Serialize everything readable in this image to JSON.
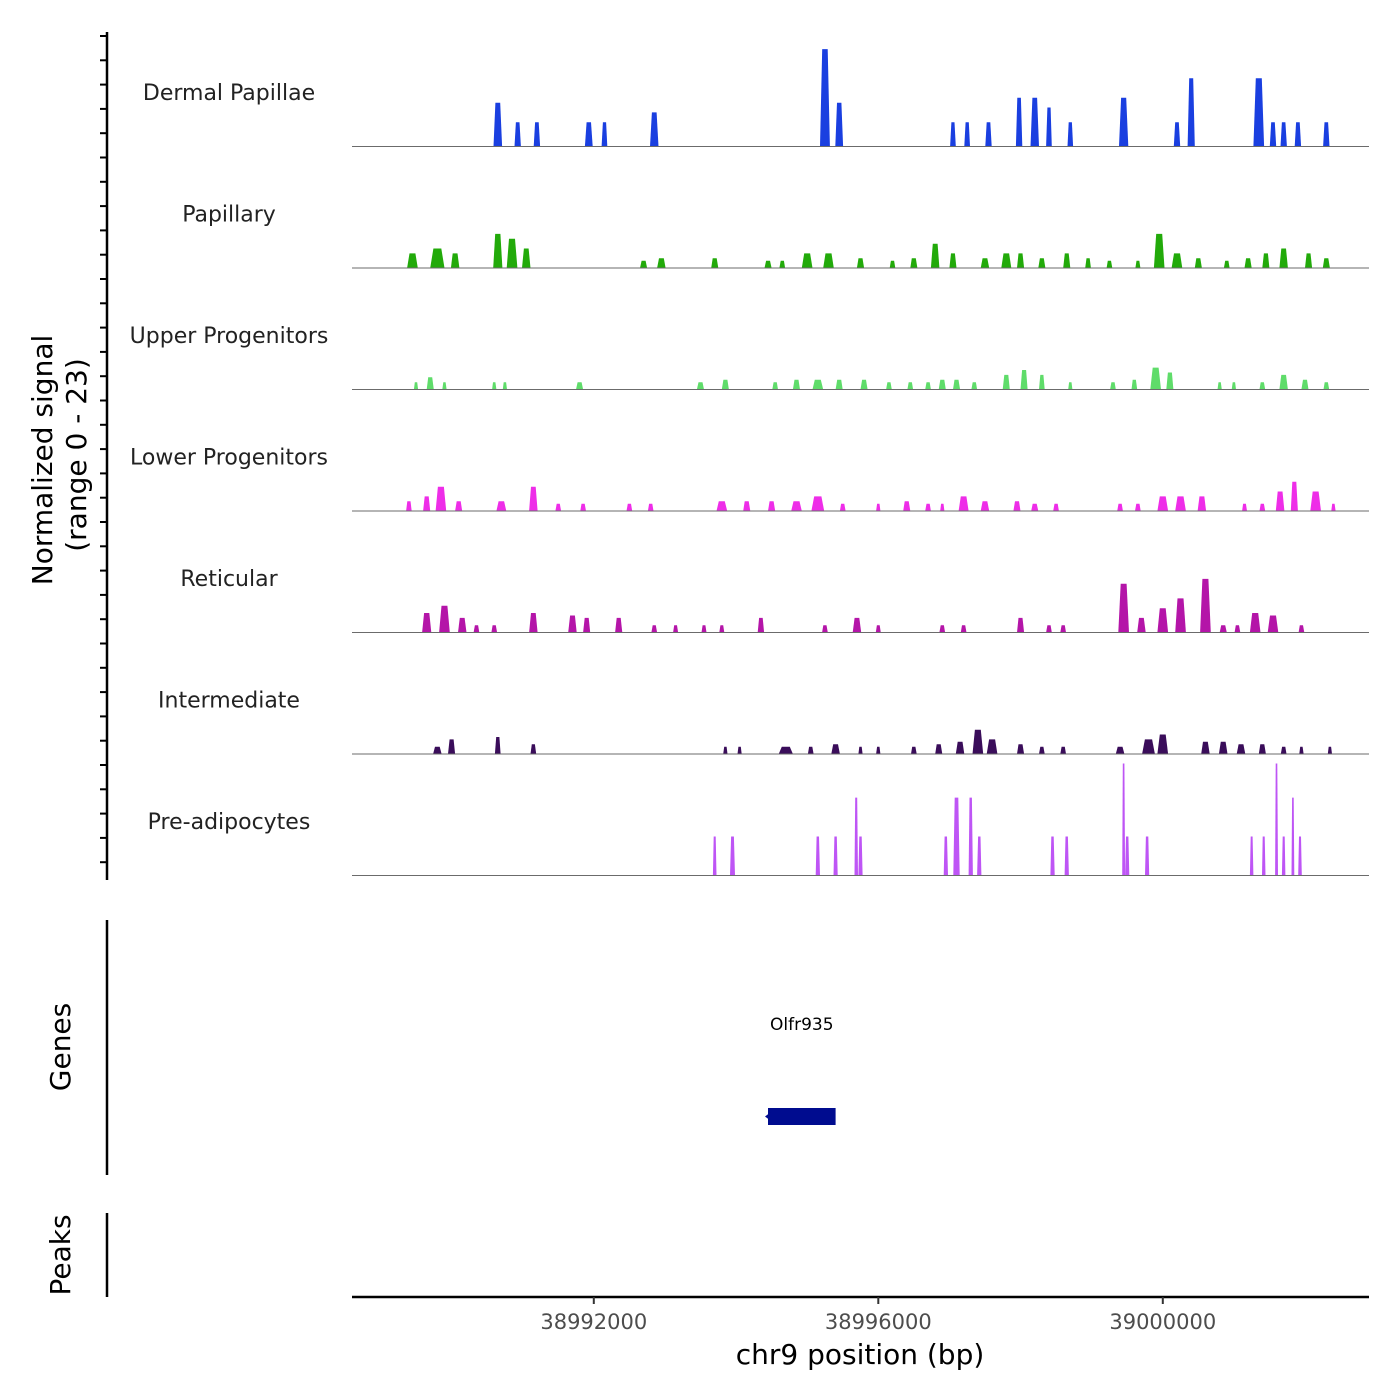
{
  "chart_data": {
    "type": "area",
    "title": "",
    "ylabel": "Normalized signal",
    "ylabel_range": "(range 0 - 23)",
    "ylim": [
      0,
      23
    ],
    "xlabel": "chr9 position (bp)",
    "xlim": [
      38988600,
      39002900
    ],
    "x_ticks": [
      38992000,
      38996000,
      39000000
    ],
    "x_tick_labels": [
      "38992000",
      "38996000",
      "39000000"
    ],
    "series": [
      {
        "name": "Dermal Papillae",
        "color": "#1a3fe0",
        "peaks": [
          [
            38990650,
            120,
            9
          ],
          [
            38990930,
            90,
            5
          ],
          [
            38991200,
            90,
            5
          ],
          [
            38991930,
            110,
            5
          ],
          [
            38992150,
            80,
            5
          ],
          [
            38992850,
            120,
            7
          ],
          [
            38995250,
            140,
            20
          ],
          [
            38995450,
            110,
            9
          ],
          [
            38997050,
            80,
            5
          ],
          [
            38997250,
            80,
            5
          ],
          [
            38997550,
            90,
            5
          ],
          [
            38997980,
            90,
            10
          ],
          [
            38998200,
            120,
            10
          ],
          [
            38998400,
            80,
            8
          ],
          [
            38998700,
            80,
            5
          ],
          [
            38999450,
            130,
            10
          ],
          [
            39000200,
            90,
            5
          ],
          [
            39000400,
            100,
            14
          ],
          [
            39001350,
            150,
            14
          ],
          [
            39001550,
            90,
            5
          ],
          [
            39001700,
            90,
            5
          ],
          [
            39001900,
            90,
            5
          ],
          [
            39002300,
            90,
            5
          ]
        ]
      },
      {
        "name": "Papillary",
        "color": "#22aa0a",
        "peaks": [
          [
            38989450,
            150,
            3
          ],
          [
            38989800,
            200,
            4
          ],
          [
            38990050,
            120,
            3
          ],
          [
            38990650,
            130,
            7
          ],
          [
            38990850,
            150,
            6
          ],
          [
            38991050,
            120,
            4
          ],
          [
            38992700,
            100,
            1.5
          ],
          [
            38992950,
            120,
            2
          ],
          [
            38993700,
            100,
            2
          ],
          [
            38994450,
            100,
            1.5
          ],
          [
            38994650,
            80,
            1.5
          ],
          [
            38995000,
            150,
            3
          ],
          [
            38995300,
            150,
            3
          ],
          [
            38995750,
            100,
            2
          ],
          [
            38996200,
            80,
            1.5
          ],
          [
            38996500,
            100,
            2
          ],
          [
            38996800,
            120,
            5
          ],
          [
            38997050,
            100,
            3
          ],
          [
            38997500,
            120,
            2
          ],
          [
            38997800,
            140,
            3
          ],
          [
            38998000,
            100,
            3
          ],
          [
            38998300,
            100,
            2
          ],
          [
            38998650,
            100,
            3
          ],
          [
            38998950,
            80,
            2
          ],
          [
            38999250,
            80,
            1.5
          ],
          [
            38999650,
            70,
            1.5
          ],
          [
            38999950,
            150,
            7
          ],
          [
            39000200,
            150,
            3
          ],
          [
            39000500,
            100,
            2
          ],
          [
            39000900,
            80,
            1.5
          ],
          [
            39001200,
            100,
            2
          ],
          [
            39001450,
            100,
            3
          ],
          [
            39001700,
            120,
            4
          ],
          [
            39002050,
            100,
            3
          ],
          [
            39002300,
            100,
            2
          ]
        ]
      },
      {
        "name": "Upper Progenitors",
        "color": "#5fdc6a",
        "peaks": [
          [
            38989500,
            60,
            1.5
          ],
          [
            38989700,
            100,
            2.5
          ],
          [
            38989900,
            60,
            1.5
          ],
          [
            38990600,
            60,
            1.5
          ],
          [
            38990750,
            60,
            1.5
          ],
          [
            38991800,
            100,
            1.5
          ],
          [
            38993500,
            100,
            1.5
          ],
          [
            38993850,
            100,
            2
          ],
          [
            38994550,
            80,
            1.5
          ],
          [
            38994850,
            100,
            2
          ],
          [
            38995150,
            150,
            2
          ],
          [
            38995450,
            100,
            2
          ],
          [
            38995800,
            100,
            2
          ],
          [
            38996150,
            80,
            1.5
          ],
          [
            38996450,
            80,
            1.5
          ],
          [
            38996700,
            80,
            1.5
          ],
          [
            38996900,
            100,
            2
          ],
          [
            38997100,
            100,
            2
          ],
          [
            38997350,
            80,
            1.5
          ],
          [
            38997800,
            100,
            3
          ],
          [
            38998050,
            100,
            4
          ],
          [
            38998300,
            80,
            3
          ],
          [
            38998700,
            60,
            1.5
          ],
          [
            38999300,
            80,
            1.5
          ],
          [
            38999600,
            80,
            2
          ],
          [
            38999900,
            150,
            4.5
          ],
          [
            39000100,
            100,
            3.5
          ],
          [
            39000800,
            60,
            1.5
          ],
          [
            39001000,
            60,
            1.5
          ],
          [
            39001400,
            80,
            1.5
          ],
          [
            39001700,
            120,
            3
          ],
          [
            39002000,
            100,
            2
          ],
          [
            39002300,
            80,
            1.5
          ]
        ]
      },
      {
        "name": "Lower Progenitors",
        "color": "#ee2de8",
        "peaks": [
          [
            38989400,
            80,
            2
          ],
          [
            38989650,
            100,
            3
          ],
          [
            38989850,
            150,
            5
          ],
          [
            38990100,
            100,
            2
          ],
          [
            38990700,
            140,
            2
          ],
          [
            38991150,
            120,
            5
          ],
          [
            38991500,
            80,
            1.5
          ],
          [
            38991850,
            80,
            1.5
          ],
          [
            38992500,
            80,
            1.5
          ],
          [
            38992800,
            80,
            1.5
          ],
          [
            38993800,
            150,
            2
          ],
          [
            38994150,
            100,
            2
          ],
          [
            38994500,
            100,
            2
          ],
          [
            38994850,
            150,
            2
          ],
          [
            38995150,
            180,
            3
          ],
          [
            38995500,
            80,
            1.5
          ],
          [
            38996000,
            60,
            1.5
          ],
          [
            38996400,
            100,
            2
          ],
          [
            38996700,
            80,
            1.5
          ],
          [
            38996900,
            60,
            1.5
          ],
          [
            38997200,
            140,
            3
          ],
          [
            38997500,
            120,
            2
          ],
          [
            38997950,
            100,
            2
          ],
          [
            38998200,
            100,
            1.5
          ],
          [
            38998500,
            80,
            1.5
          ],
          [
            38999400,
            80,
            1.5
          ],
          [
            38999650,
            80,
            1.5
          ],
          [
            39000000,
            150,
            3
          ],
          [
            39000250,
            150,
            3
          ],
          [
            39000550,
            120,
            3
          ],
          [
            39001150,
            70,
            1.5
          ],
          [
            39001400,
            80,
            1.5
          ],
          [
            39001650,
            120,
            4
          ],
          [
            39001850,
            100,
            6
          ],
          [
            39002150,
            150,
            4
          ],
          [
            39002400,
            60,
            1.5
          ]
        ]
      },
      {
        "name": "Reticular",
        "color": "#b415a8",
        "peaks": [
          [
            38989650,
            130,
            4
          ],
          [
            38989900,
            150,
            5.5
          ],
          [
            38990150,
            120,
            3
          ],
          [
            38990350,
            80,
            1.5
          ],
          [
            38990600,
            80,
            1.5
          ],
          [
            38991150,
            120,
            4
          ],
          [
            38991700,
            120,
            3.5
          ],
          [
            38991900,
            100,
            3
          ],
          [
            38992350,
            100,
            3
          ],
          [
            38992850,
            80,
            1.5
          ],
          [
            38993150,
            70,
            1.5
          ],
          [
            38993550,
            70,
            1.5
          ],
          [
            38993800,
            70,
            1.5
          ],
          [
            38994350,
            90,
            3
          ],
          [
            38995250,
            80,
            1.5
          ],
          [
            38995700,
            120,
            3
          ],
          [
            38996000,
            70,
            1.5
          ],
          [
            38996900,
            80,
            1.5
          ],
          [
            38997200,
            80,
            1.5
          ],
          [
            38998000,
            100,
            3
          ],
          [
            38998400,
            80,
            1.5
          ],
          [
            38998600,
            80,
            1.5
          ],
          [
            38999450,
            150,
            10
          ],
          [
            38999700,
            120,
            3
          ],
          [
            39000000,
            150,
            5
          ],
          [
            39000250,
            150,
            7
          ],
          [
            39000600,
            150,
            11
          ],
          [
            39000850,
            100,
            1.5
          ],
          [
            39001050,
            80,
            1.5
          ],
          [
            39001300,
            150,
            4
          ],
          [
            39001550,
            150,
            3.5
          ],
          [
            39001950,
            80,
            1.5
          ]
        ]
      },
      {
        "name": "Intermediate",
        "color": "#3a0d5a",
        "peaks": [
          [
            38989800,
            120,
            1.5
          ],
          [
            38990000,
            100,
            3
          ],
          [
            38990650,
            80,
            3.5
          ],
          [
            38991150,
            80,
            2
          ],
          [
            38993850,
            60,
            1.5
          ],
          [
            38994050,
            60,
            1.5
          ],
          [
            38994700,
            200,
            1.5
          ],
          [
            38995050,
            80,
            1.5
          ],
          [
            38995400,
            120,
            2
          ],
          [
            38995750,
            60,
            1.5
          ],
          [
            38996000,
            60,
            1.5
          ],
          [
            38996500,
            80,
            1.5
          ],
          [
            38996850,
            100,
            2
          ],
          [
            38997150,
            120,
            2.5
          ],
          [
            38997400,
            150,
            5
          ],
          [
            38997600,
            150,
            3
          ],
          [
            38998000,
            100,
            2
          ],
          [
            38998300,
            80,
            1.5
          ],
          [
            38998600,
            80,
            1.5
          ],
          [
            38999400,
            120,
            1.5
          ],
          [
            38999800,
            180,
            3
          ],
          [
            39000000,
            150,
            4
          ],
          [
            39000600,
            120,
            2.5
          ],
          [
            39000850,
            120,
            2.5
          ],
          [
            39001100,
            120,
            2
          ],
          [
            39001400,
            100,
            2
          ],
          [
            39001700,
            80,
            1.5
          ],
          [
            39001950,
            60,
            1.5
          ],
          [
            39002350,
            60,
            1.5
          ]
        ]
      },
      {
        "name": "Pre-adipocytes",
        "color": "#be55f5",
        "peaks": [
          [
            38993700,
            50,
            8
          ],
          [
            38993950,
            70,
            8
          ],
          [
            38995150,
            60,
            8
          ],
          [
            38995400,
            60,
            8
          ],
          [
            38995690,
            50,
            16
          ],
          [
            38995750,
            60,
            8
          ],
          [
            38996950,
            60,
            8
          ],
          [
            38997100,
            90,
            16
          ],
          [
            38997300,
            60,
            16
          ],
          [
            38997420,
            60,
            8
          ],
          [
            38998450,
            60,
            8
          ],
          [
            38998650,
            60,
            8
          ],
          [
            38999450,
            40,
            23
          ],
          [
            38999500,
            60,
            8
          ],
          [
            38999780,
            60,
            8
          ],
          [
            39001250,
            50,
            8
          ],
          [
            39001420,
            50,
            8
          ],
          [
            39001600,
            40,
            23
          ],
          [
            39001700,
            50,
            8
          ],
          [
            39001830,
            40,
            16
          ],
          [
            39001930,
            50,
            8
          ]
        ]
      }
    ],
    "genes": [
      {
        "name": "Olfr935",
        "start": 38994450,
        "end": 38995400,
        "strand": "-",
        "color": "#000c8f"
      }
    ],
    "peaks_track": []
  },
  "panels": {
    "genes_title": "Genes",
    "peaks_title": "Peaks"
  }
}
